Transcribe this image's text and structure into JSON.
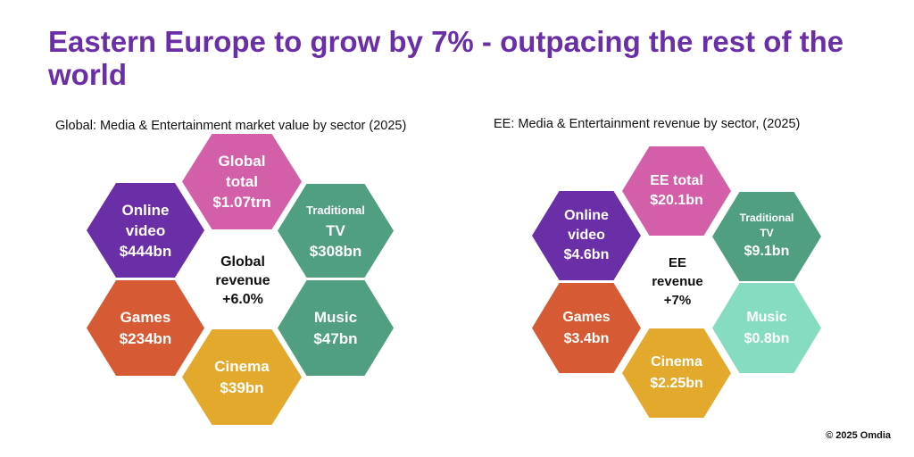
{
  "title": "Eastern Europe to grow by 7% - outpacing the rest of the world",
  "global": {
    "subtitle": "Global: Media & Entertainment market value by sector (2025)",
    "center": [
      "Global",
      "revenue",
      "+6.0%"
    ],
    "hexes": {
      "total": {
        "lines": [
          "Global",
          "total",
          "$1.07trn"
        ],
        "color": "#d35fa8"
      },
      "online_video": {
        "lines": [
          "Online",
          "video",
          "$444bn"
        ],
        "color": "#6a2fa6"
      },
      "traditional_tv": {
        "lines": [
          "Traditional",
          "TV",
          "$308bn"
        ],
        "color": "#4f9f80"
      },
      "games": {
        "lines": [
          "Games",
          "$234bn"
        ],
        "color": "#d65a33"
      },
      "music": {
        "lines": [
          "Music",
          "$47bn"
        ],
        "color": "#4f9f80"
      },
      "cinema": {
        "lines": [
          "Cinema",
          "$39bn"
        ],
        "color": "#e2a92d"
      }
    }
  },
  "ee": {
    "subtitle": "EE: Media & Entertainment revenue by sector, (2025)",
    "center": [
      "EE",
      "revenue",
      "+7%"
    ],
    "hexes": {
      "total": {
        "lines": [
          "EE total",
          "$20.1bn"
        ],
        "color": "#d35fa8"
      },
      "online_video": {
        "lines": [
          "Online",
          "video",
          "$4.6bn"
        ],
        "color": "#6a2fa6"
      },
      "traditional_tv": {
        "lines": [
          "Traditional",
          "TV",
          "$9.1bn"
        ],
        "color": "#4f9f80"
      },
      "games": {
        "lines": [
          "Games",
          "$3.4bn"
        ],
        "color": "#d65a33"
      },
      "music": {
        "lines": [
          "Music",
          "$0.8bn"
        ],
        "color": "#86dcc0"
      },
      "cinema": {
        "lines": [
          "Cinema",
          "$2.25bn"
        ],
        "color": "#e2a92d"
      }
    }
  },
  "copyright": "© 2025 Omdia"
}
